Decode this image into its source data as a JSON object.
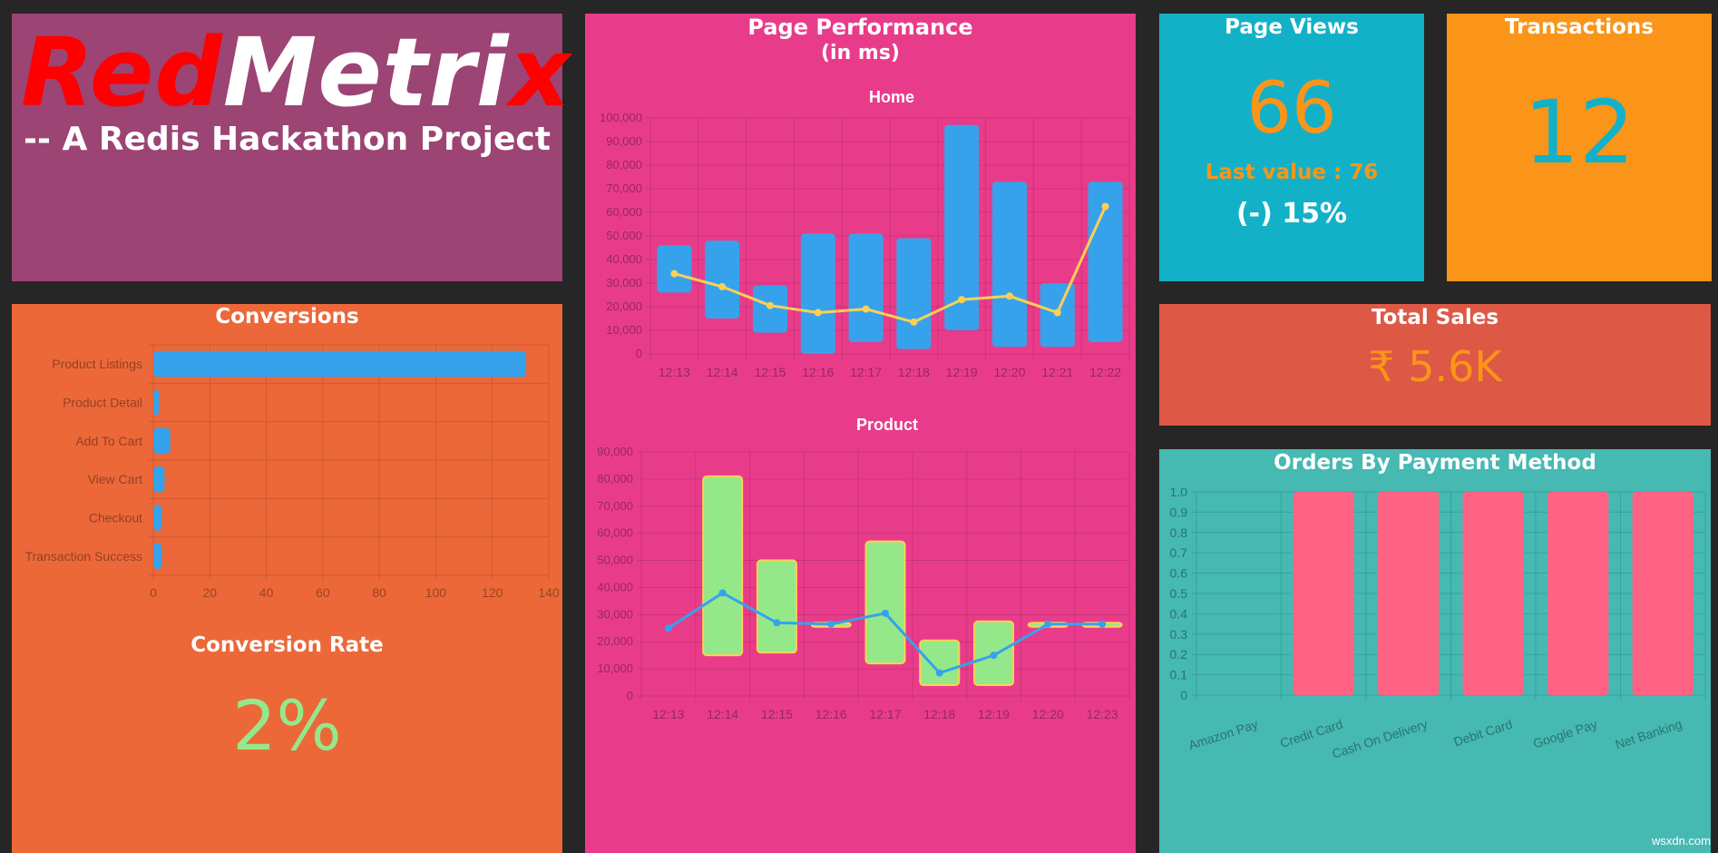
{
  "logo": {
    "word_red_1": "Red",
    "word_white": "Metri",
    "word_red_2": "x",
    "subtitle": "-- A Redis Hackathon Project"
  },
  "page_performance": {
    "title_line1": "Page Performance",
    "title_line2": "(in ms)"
  },
  "page_views": {
    "title": "Page Views",
    "value": "66",
    "last_value": "Last value : 76",
    "change": "(-) 15%"
  },
  "transactions": {
    "title": "Transactions",
    "value": "12"
  },
  "total_sales": {
    "title": "Total Sales",
    "value": "₹ 5.6K"
  },
  "conversions": {
    "title": "Conversions"
  },
  "conversion_rate": {
    "title": "Conversion Rate",
    "value": "2%"
  },
  "orders_by_payment": {
    "title": "Orders By Payment Method"
  },
  "watermark": "wsxdn.com",
  "colors": {
    "bg": "#262626",
    "logo_panel": "#9c4474",
    "perf_panel": "#e83c8a",
    "views_panel": "#13b1c8",
    "trans_panel": "#fa9519",
    "sales_panel": "#de5846",
    "conv_panel": "#ec6839",
    "orders_panel": "#45b9b2",
    "blue": "#36a2eb",
    "green": "#94e88a",
    "yellow": "#ffd054",
    "pink": "#ff6384"
  },
  "chart_data": [
    {
      "id": "home",
      "type": "bar",
      "title": "Home",
      "categories": [
        "12:13",
        "12:14",
        "12:15",
        "12:16",
        "12:17",
        "12:18",
        "12:19",
        "12:20",
        "12:21",
        "12:22"
      ],
      "ranges": [
        [
          26000,
          46000
        ],
        [
          15000,
          48000
        ],
        [
          9000,
          29000
        ],
        [
          0,
          51000
        ],
        [
          5000,
          51000
        ],
        [
          2000,
          49000
        ],
        [
          10000,
          97000
        ],
        [
          3000,
          73000
        ],
        [
          3000,
          30000
        ],
        [
          5000,
          73000
        ]
      ],
      "line": [
        34000,
        28500,
        20500,
        17500,
        19000,
        13500,
        23000,
        24500,
        17500,
        62500
      ],
      "ylim": [
        0,
        100000
      ],
      "yticks": [
        "0",
        "10,000",
        "20,000",
        "30,000",
        "40,000",
        "50,000",
        "60,000",
        "70,000",
        "80,000",
        "90,000",
        "100,000"
      ]
    },
    {
      "id": "product",
      "type": "bar",
      "title": "Product",
      "categories": [
        "12:13",
        "12:14",
        "12:15",
        "12:16",
        "12:17",
        "12:18",
        "12:19",
        "12:20",
        "12:23"
      ],
      "ranges": [
        null,
        [
          15000,
          81000
        ],
        [
          16000,
          50000
        ],
        [
          25500,
          27000
        ],
        [
          12000,
          57000
        ],
        [
          4000,
          20500
        ],
        [
          4000,
          27500
        ],
        [
          25500,
          27000
        ],
        [
          25500,
          27000
        ]
      ],
      "line": [
        25000,
        38000,
        27000,
        26500,
        30500,
        8500,
        15000,
        26500,
        26500
      ],
      "ylim": [
        0,
        90000
      ],
      "yticks": [
        "0",
        "10,000",
        "20,000",
        "30,000",
        "40,000",
        "50,000",
        "60,000",
        "70,000",
        "80,000",
        "90,000"
      ]
    },
    {
      "id": "conversions",
      "type": "bar",
      "orientation": "horizontal",
      "categories": [
        "Product Listings",
        "Product Detail",
        "Add To Cart",
        "View Cart",
        "Checkout",
        "Transaction Success"
      ],
      "values": [
        132,
        2,
        6,
        4,
        3,
        3
      ],
      "xlim": [
        0,
        140
      ],
      "xticks": [
        "0",
        "20",
        "40",
        "60",
        "80",
        "100",
        "120",
        "140"
      ]
    },
    {
      "id": "payment",
      "type": "bar",
      "categories": [
        "Amazon Pay",
        "Credit Card",
        "Cash On Delivery",
        "Debit Card",
        "Google Pay",
        "Net Banking"
      ],
      "values": [
        0,
        1,
        1,
        1,
        1,
        1
      ],
      "ylim": [
        0,
        1
      ],
      "yticks": [
        "0",
        "0.1",
        "0.2",
        "0.3",
        "0.4",
        "0.5",
        "0.6",
        "0.7",
        "0.8",
        "0.9",
        "1.0"
      ]
    }
  ]
}
